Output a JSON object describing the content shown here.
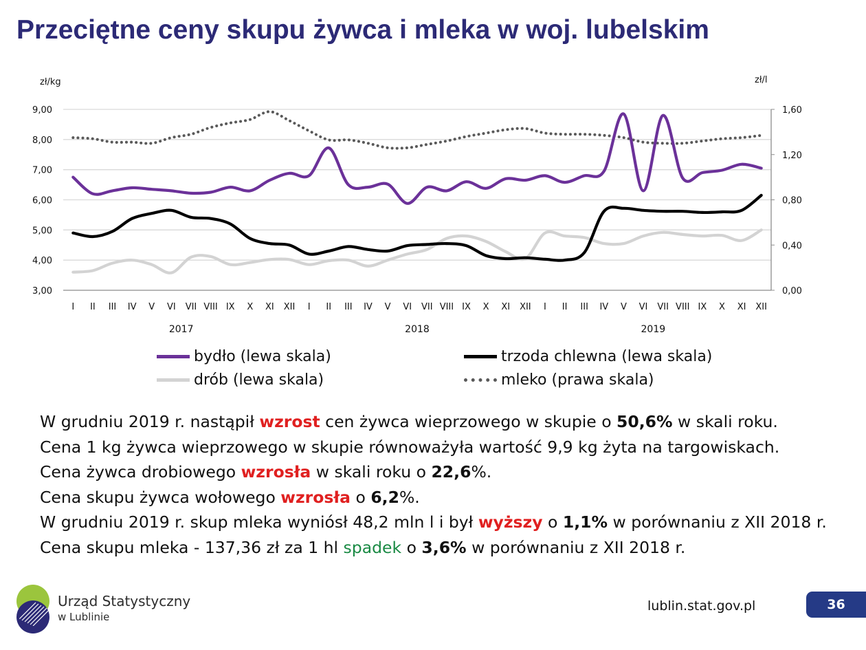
{
  "title": "Przeciętne ceny skupu żywca i mleka w woj. lubelskim",
  "chart_data": {
    "type": "line",
    "left_axis_label": "zł/kg",
    "right_axis_label": "zł/l",
    "left_ylim": [
      3,
      9
    ],
    "right_ylim": [
      0,
      1.6
    ],
    "left_ticks": [
      "3,00",
      "4,00",
      "5,00",
      "6,00",
      "7,00",
      "8,00",
      "9,00"
    ],
    "right_ticks": [
      "0,00",
      "0,40",
      "0,80",
      "1,20",
      "1,60"
    ],
    "categories": [
      "I",
      "II",
      "III",
      "IV",
      "V",
      "VI",
      "VII",
      "VIII",
      "IX",
      "X",
      "XI",
      "XII",
      "I",
      "II",
      "III",
      "IV",
      "V",
      "VI",
      "VII",
      "VIII",
      "IX",
      "X",
      "XI",
      "XII",
      "I",
      "II",
      "III",
      "IV",
      "V",
      "VI",
      "VII",
      "VIII",
      "IX",
      "X",
      "XI",
      "XII"
    ],
    "years": [
      "2017",
      "2018",
      "2019"
    ],
    "series": [
      {
        "name": "bydło (lewa skala)",
        "axis": "left",
        "color": "#6b3199",
        "style": "solid",
        "values": [
          6.75,
          6.2,
          6.3,
          6.4,
          6.35,
          6.3,
          6.22,
          6.25,
          6.42,
          6.3,
          6.65,
          6.88,
          6.8,
          7.72,
          6.5,
          6.42,
          6.52,
          5.88,
          6.42,
          6.3,
          6.6,
          6.38,
          6.7,
          6.65,
          6.8,
          6.58,
          6.8,
          6.95,
          8.85,
          6.3,
          8.8,
          6.72,
          6.9,
          6.98,
          7.18,
          7.05
        ]
      },
      {
        "name": "trzoda chlewna (lewa skala)",
        "axis": "left",
        "color": "#000000",
        "style": "solid",
        "values": [
          4.9,
          4.78,
          4.95,
          5.38,
          5.55,
          5.65,
          5.42,
          5.38,
          5.2,
          4.72,
          4.55,
          4.5,
          4.2,
          4.3,
          4.45,
          4.35,
          4.3,
          4.48,
          4.52,
          4.55,
          4.48,
          4.15,
          4.05,
          4.08,
          4.03,
          4.0,
          4.25,
          5.62,
          5.72,
          5.65,
          5.62,
          5.62,
          5.58,
          5.6,
          5.65,
          6.15
        ]
      },
      {
        "name": "drób (lewa skala)",
        "axis": "left",
        "color": "#d3d3d3",
        "style": "solid",
        "values": [
          3.6,
          3.65,
          3.9,
          4.0,
          3.85,
          3.58,
          4.1,
          4.12,
          3.85,
          3.92,
          4.02,
          4.02,
          3.85,
          3.98,
          4.0,
          3.8,
          4.0,
          4.2,
          4.35,
          4.72,
          4.8,
          4.62,
          4.28,
          4.05,
          4.9,
          4.8,
          4.75,
          4.55,
          4.55,
          4.8,
          4.92,
          4.85,
          4.8,
          4.82,
          4.65,
          5.0
        ]
      },
      {
        "name": "mleko (prawa skala)",
        "axis": "right",
        "color": "#595959",
        "style": "dotted",
        "values": [
          1.35,
          1.34,
          1.31,
          1.31,
          1.3,
          1.35,
          1.38,
          1.44,
          1.48,
          1.51,
          1.58,
          1.5,
          1.41,
          1.33,
          1.33,
          1.3,
          1.26,
          1.26,
          1.29,
          1.32,
          1.36,
          1.39,
          1.42,
          1.43,
          1.39,
          1.38,
          1.38,
          1.37,
          1.35,
          1.31,
          1.3,
          1.3,
          1.32,
          1.34,
          1.35,
          1.37
        ]
      }
    ]
  },
  "legend": {
    "bydlo": "bydło (lewa skala)",
    "trzoda": "trzoda chlewna (lewa skala)",
    "drob": "drób (lewa skala)",
    "mleko": "mleko (prawa skala)"
  },
  "text": {
    "l1": {
      "a": "W grudniu 2019 r. nastąpił ",
      "b": "wzrost",
      "c": " cen żywca wieprzowego w skupie o ",
      "d": "50,6%",
      "e": " w skali roku."
    },
    "l2": "Cena 1 kg żywca wieprzowego w skupie równoważyła wartość 9,9 kg żyta na targowiskach.",
    "l3": {
      "a": "Cena żywca drobiowego ",
      "b": "wzrosła",
      "c": " w skali roku o ",
      "d": "22,6",
      "e": "%."
    },
    "l4": {
      "a": "Cena skupu żywca wołowego ",
      "b": "wzrosła",
      "c": " o ",
      "d": "6,2",
      "e": "%."
    },
    "l5": {
      "a": "W grudniu 2019 r. skup mleka wyniósł 48,2 mln l i był ",
      "b": "wyższy",
      "c": " o ",
      "d": "1,1%",
      "e": " w porównaniu z XII 2018 r."
    },
    "l6": {
      "a": "Cena skupu mleka - 137,36 zł za 1 hl ",
      "b": "spadek",
      "c": " o ",
      "d": "3,6%",
      "e": " w porównaniu z XII 2018 r."
    }
  },
  "footer": {
    "url": "lublin.stat.gov.pl",
    "page": "36",
    "logo_line1": "Urząd Statystyczny",
    "logo_line2": "w Lublinie"
  }
}
